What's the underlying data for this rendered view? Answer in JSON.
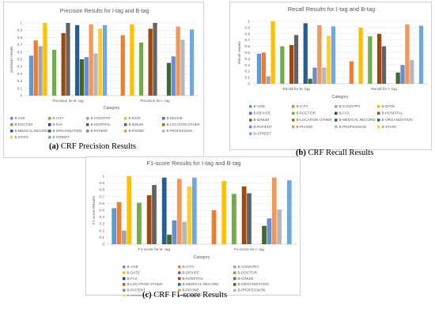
{
  "colors": [
    "#5b9bd5",
    "#ed7d31",
    "#a5a5a5",
    "#ffc000",
    "#4472c4",
    "#70ad47",
    "#264478",
    "#9e480e",
    "#636363",
    "#997300",
    "#255e91",
    "#43682b",
    "#698ed0",
    "#f1975a",
    "#b7b7b7",
    "#ffcd33",
    "#6fa8dc"
  ],
  "legend_labels": [
    "B-AGE",
    "B-CITY",
    "B-COUNTRY",
    "B-DATE",
    "B-DEVICE",
    "B-DOCTOR",
    "B-FAX",
    "B-HOSPITAL",
    "B-IDNUM",
    "B-LOCATION OTHER",
    "B-MEDICAL RECORD",
    "B-ORGANIZATION",
    "B-PATIENT",
    "B-PHONE",
    "B-PROFESSION",
    "B-STATE",
    "B-STREET"
  ],
  "captions": [
    {
      "letter": "(a)",
      "text": " CRF Precision Results"
    },
    {
      "letter": "(b)",
      "text": " CRF Recall Results"
    },
    {
      "letter": "(c)",
      "text": " CRF F1-score Results"
    }
  ],
  "chart_data": [
    {
      "type": "bar",
      "title": "Precision Results for I-tag and B-tag",
      "xlabel": "Category",
      "ylabel": "precision results",
      "ylim": [
        0,
        1
      ],
      "yticks": [
        "0",
        "0.1",
        "0.2",
        "0.3",
        "0.4",
        "0.5",
        "0.6",
        "0.7",
        "0.8",
        "0.9",
        "1"
      ],
      "grid": true,
      "legend_position": "bottom",
      "categories": [
        "Precision for B- tag",
        "Precision for I- tag"
      ],
      "series": [
        {
          "name": "B-AGE",
          "values": [
            0.55,
            0
          ]
        },
        {
          "name": "B-CITY",
          "values": [
            0.76,
            0.83
          ]
        },
        {
          "name": "B-COUNTRY",
          "values": [
            0.68,
            0
          ]
        },
        {
          "name": "B-DATE",
          "values": [
            1.0,
            0.98
          ]
        },
        {
          "name": "B-DEVICE",
          "values": [
            0,
            0
          ]
        },
        {
          "name": "B-DOCTOR",
          "values": [
            0.63,
            0.73
          ]
        },
        {
          "name": "B-FAX",
          "values": [
            0,
            0
          ]
        },
        {
          "name": "B-HOSPITAL",
          "values": [
            0.86,
            0.92
          ]
        },
        {
          "name": "B-IDNUM",
          "values": [
            1.0,
            1.0
          ]
        },
        {
          "name": "B-LOCATION OTHER",
          "values": [
            0,
            0
          ]
        },
        {
          "name": "B-MEDICAL RECORD",
          "values": [
            0.97,
            0
          ]
        },
        {
          "name": "B-ORGANIZATION",
          "values": [
            0.5,
            0.45
          ]
        },
        {
          "name": "B-PATIENT",
          "values": [
            0.53,
            0.54
          ]
        },
        {
          "name": "B-PHONE",
          "values": [
            0.98,
            0.95
          ]
        },
        {
          "name": "B-PROFESSION",
          "values": [
            0.58,
            0.77
          ]
        },
        {
          "name": "B-STATE",
          "values": [
            0.92,
            0
          ]
        },
        {
          "name": "B-STREET",
          "values": [
            0.97,
            0.91
          ]
        }
      ]
    },
    {
      "type": "bar",
      "title": "Recall Results for I-tag and B-tag",
      "xlabel": "Category",
      "ylabel": "Recall results",
      "ylim": [
        0,
        1
      ],
      "yticks": [
        "0",
        "0.1",
        "0.2",
        "0.3",
        "0.4",
        "0.5",
        "0.6",
        "0.7",
        "0.8",
        "0.9",
        "1"
      ],
      "grid": true,
      "legend_position": "bottom",
      "categories": [
        "Recall for B- tag",
        "Recall for I- tag"
      ],
      "series": [
        {
          "name": "B-AGE",
          "values": [
            0.48,
            0
          ]
        },
        {
          "name": "B-CITY",
          "values": [
            0.5,
            0.36
          ]
        },
        {
          "name": "B-COUNTRY",
          "values": [
            0.12,
            0
          ]
        },
        {
          "name": "B-DATE",
          "values": [
            1.0,
            0.9
          ]
        },
        {
          "name": "B-DEVICE",
          "values": [
            0,
            0
          ]
        },
        {
          "name": "B-DOCTOR",
          "values": [
            0.6,
            0.76
          ]
        },
        {
          "name": "B-FAX",
          "values": [
            0,
            0
          ]
        },
        {
          "name": "B-HOSPITAL",
          "values": [
            0.62,
            0.8
          ]
        },
        {
          "name": "B-IDNUM",
          "values": [
            0.78,
            0.6
          ]
        },
        {
          "name": "B-LOCATION OTHER",
          "values": [
            0,
            0
          ]
        },
        {
          "name": "B-MEDICAL RECORD",
          "values": [
            0.97,
            0
          ]
        },
        {
          "name": "B-ORGANIZATION",
          "values": [
            0.08,
            0.18
          ]
        },
        {
          "name": "B-PATIENT",
          "values": [
            0.26,
            0.3
          ]
        },
        {
          "name": "B-PHONE",
          "values": [
            0.94,
            0.95
          ]
        },
        {
          "name": "B-PROFESSION",
          "values": [
            0.26,
            0.38
          ]
        },
        {
          "name": "B-STATE",
          "values": [
            0.77,
            0
          ]
        },
        {
          "name": "B-STREET",
          "values": [
            0.92,
            0.93
          ]
        }
      ]
    },
    {
      "type": "bar",
      "title": "F1-score Results for I-tag and B-tag",
      "xlabel": "Category",
      "ylabel": "F1-score Results",
      "ylim": [
        0,
        1
      ],
      "yticks": [
        "0",
        "0.1",
        "0.2",
        "0.3",
        "0.4",
        "0.5",
        "0.6",
        "0.7",
        "0.8",
        "0.9",
        "1"
      ],
      "grid": true,
      "legend_position": "bottom",
      "categories": [
        "F1-score for B- tag",
        "F1-score for I- tag"
      ],
      "series": [
        {
          "name": "B-AGE",
          "values": [
            0.53,
            0
          ]
        },
        {
          "name": "B-CITY",
          "values": [
            0.62,
            0.5
          ]
        },
        {
          "name": "B-COUNTRY",
          "values": [
            0.2,
            0
          ]
        },
        {
          "name": "B-DATE",
          "values": [
            1.0,
            0.93
          ]
        },
        {
          "name": "B-DEVICE",
          "values": [
            0,
            0
          ]
        },
        {
          "name": "B-DOCTOR",
          "values": [
            0.61,
            0.74
          ]
        },
        {
          "name": "B-FAX",
          "values": [
            0,
            0
          ]
        },
        {
          "name": "B-HOSPITAL",
          "values": [
            0.72,
            0.85
          ]
        },
        {
          "name": "B-IDNUM",
          "values": [
            0.87,
            0.75
          ]
        },
        {
          "name": "B-LOCATION OTHER",
          "values": [
            0,
            0
          ]
        },
        {
          "name": "B-MEDICAL RECORD",
          "values": [
            0.98,
            0
          ]
        },
        {
          "name": "B-ORGANIZATION",
          "values": [
            0.14,
            0.27
          ]
        },
        {
          "name": "B-PATIENT",
          "values": [
            0.35,
            0.38
          ]
        },
        {
          "name": "B-PHONE",
          "values": [
            0.96,
            0.98
          ]
        },
        {
          "name": "B-PROFESSION",
          "values": [
            0.33,
            0.51
          ]
        },
        {
          "name": "B-STATE",
          "values": [
            0.85,
            0
          ]
        },
        {
          "name": "B-STREET",
          "values": [
            0.98,
            0.94
          ]
        }
      ]
    }
  ]
}
